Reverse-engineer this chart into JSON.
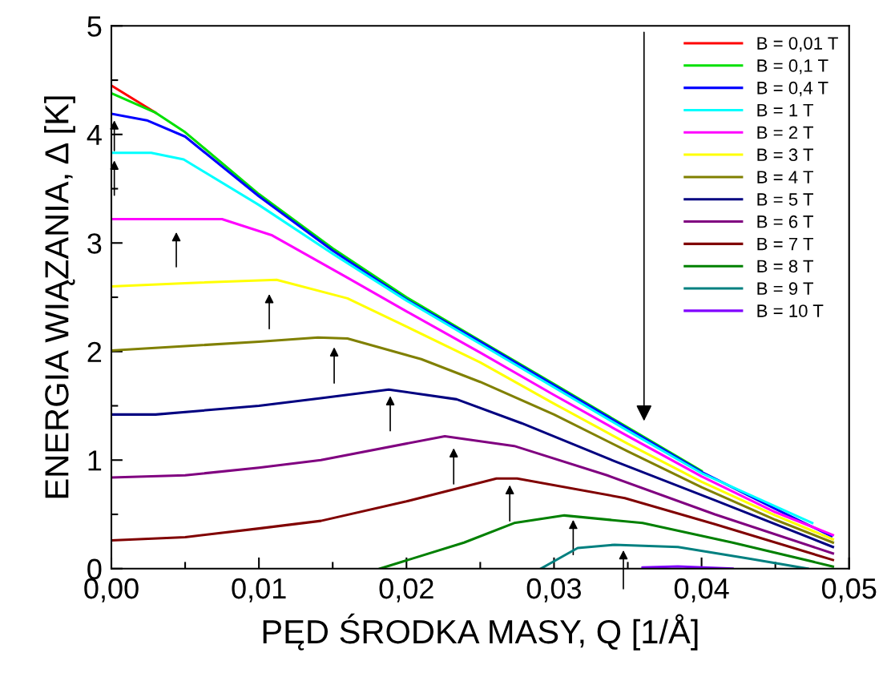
{
  "chart_data": {
    "type": "line",
    "xlabel": "PĘD ŚRODKA MASY, Q [1/Å]",
    "ylabel": "ENERGIA WIĄZANIA, Δ [K]",
    "xlim": [
      0,
      0.05
    ],
    "ylim": [
      0,
      5
    ],
    "xticks": [
      {
        "value": 0,
        "label": "0,00"
      },
      {
        "value": 0.005,
        "label": null
      },
      {
        "value": 0.01,
        "label": "0,01"
      },
      {
        "value": 0.015,
        "label": null
      },
      {
        "value": 0.02,
        "label": "0,02"
      },
      {
        "value": 0.025,
        "label": null
      },
      {
        "value": 0.03,
        "label": "0,03"
      },
      {
        "value": 0.035,
        "label": null
      },
      {
        "value": 0.04,
        "label": "0,04"
      },
      {
        "value": 0.045,
        "label": null
      },
      {
        "value": 0.05,
        "label": "0,05"
      }
    ],
    "yticks": [
      0,
      {
        "value": 0.5,
        "label": null
      },
      1,
      {
        "value": 1.5,
        "label": null
      },
      2,
      {
        "value": 2.5,
        "label": null
      },
      3,
      {
        "value": 3.5,
        "label": null
      },
      4,
      {
        "value": 4.5,
        "label": null
      },
      5
    ],
    "grid": false,
    "legend": "top right",
    "marker": "none",
    "line_style": "solid",
    "series": [
      {
        "name": "B = 0,01 T",
        "color": "#ff0000",
        "x": [
          0,
          0.003
        ],
        "values": [
          4.45,
          4.2
        ]
      },
      {
        "name": "B = 0,1 T",
        "color": "#00e000",
        "x": [
          0,
          0.003,
          0.005,
          0.01,
          0.015,
          0.02,
          0.025,
          0.03,
          0.035,
          0.04
        ],
        "values": [
          4.38,
          4.2,
          4.02,
          3.45,
          2.95,
          2.5,
          2.1,
          1.7,
          1.3,
          0.9
        ]
      },
      {
        "name": "B = 0,4 T",
        "color": "#0000ff",
        "x": [
          0,
          0.0024,
          0.005,
          0.01,
          0.015,
          0.02,
          0.025,
          0.03,
          0.035,
          0.04,
          0.045,
          0.0488
        ],
        "values": [
          4.19,
          4.13,
          3.98,
          3.43,
          2.93,
          2.48,
          2.09,
          1.69,
          1.29,
          0.89,
          0.55,
          0.3
        ]
      },
      {
        "name": "B = 1 T",
        "color": "#00ffff",
        "x": [
          0,
          0.0027,
          0.0049,
          0.01,
          0.015,
          0.02,
          0.025,
          0.03,
          0.035,
          0.04,
          0.0475
        ],
        "values": [
          3.83,
          3.83,
          3.77,
          3.35,
          2.9,
          2.47,
          2.07,
          1.67,
          1.27,
          0.88,
          0.42
        ]
      },
      {
        "name": "B = 2 T",
        "color": "#ff00ff",
        "x": [
          0,
          0.0075,
          0.0109,
          0.016,
          0.02,
          0.025,
          0.03,
          0.035,
          0.04,
          0.045,
          0.0489
        ],
        "values": [
          3.22,
          3.22,
          3.07,
          2.68,
          2.37,
          1.99,
          1.6,
          1.22,
          0.85,
          0.52,
          0.31
        ]
      },
      {
        "name": "B = 3 T",
        "color": "#ffff00",
        "x": [
          0,
          0.005,
          0.0112,
          0.016,
          0.02,
          0.025,
          0.03,
          0.035,
          0.04,
          0.045,
          0.0489
        ],
        "values": [
          2.6,
          2.63,
          2.66,
          2.49,
          2.23,
          1.9,
          1.52,
          1.15,
          0.8,
          0.49,
          0.27
        ]
      },
      {
        "name": "B = 4 T",
        "color": "#808000",
        "x": [
          0,
          0.005,
          0.01,
          0.014,
          0.016,
          0.021,
          0.025,
          0.03,
          0.035,
          0.04,
          0.045,
          0.0489
        ],
        "values": [
          2.01,
          2.05,
          2.09,
          2.13,
          2.12,
          1.93,
          1.72,
          1.42,
          1.08,
          0.75,
          0.45,
          0.24
        ]
      },
      {
        "name": "B = 5 T",
        "color": "#000080",
        "x": [
          0,
          0.003,
          0.01,
          0.0142,
          0.0188,
          0.0234,
          0.0278,
          0.0341,
          0.0409,
          0.0489
        ],
        "values": [
          1.42,
          1.42,
          1.5,
          1.57,
          1.65,
          1.56,
          1.34,
          0.99,
          0.63,
          0.2
        ]
      },
      {
        "name": "B = 6 T",
        "color": "#800080",
        "x": [
          0,
          0.005,
          0.01,
          0.0142,
          0.0226,
          0.0273,
          0.0336,
          0.0409,
          0.0489
        ],
        "values": [
          0.84,
          0.86,
          0.93,
          1.0,
          1.22,
          1.13,
          0.86,
          0.5,
          0.14
        ]
      },
      {
        "name": "B = 7 T",
        "color": "#800000",
        "x": [
          0,
          0.005,
          0.01,
          0.0142,
          0.02,
          0.0261,
          0.0275,
          0.0348,
          0.0409,
          0.0489
        ],
        "values": [
          0.26,
          0.29,
          0.37,
          0.44,
          0.62,
          0.83,
          0.83,
          0.65,
          0.41,
          0.08
        ]
      },
      {
        "name": "B = 8 T",
        "color": "#008000",
        "x": [
          0.0182,
          0.0239,
          0.0273,
          0.0307,
          0.036,
          0.0421,
          0.0489
        ],
        "values": [
          0,
          0.24,
          0.42,
          0.49,
          0.42,
          0.24,
          0.02
        ]
      },
      {
        "name": "B = 9 T",
        "color": "#008080",
        "x": [
          0.0291,
          0.0316,
          0.0341,
          0.0384,
          0.0433,
          0.0472
        ],
        "values": [
          0,
          0.19,
          0.22,
          0.2,
          0.09,
          0
        ]
      },
      {
        "name": "B = 10 T",
        "color": "#8000ff",
        "x": [
          0.036,
          0.0384,
          0.0421
        ],
        "values": [
          0.01,
          0.02,
          0
        ]
      }
    ]
  }
}
